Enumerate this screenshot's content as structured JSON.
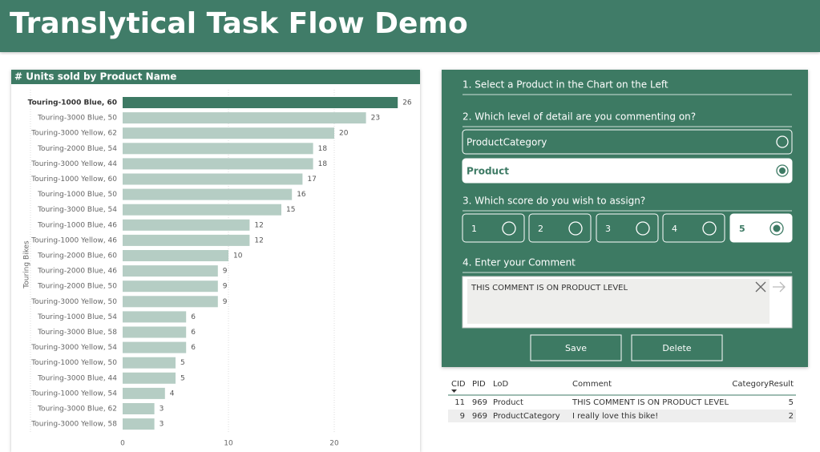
{
  "header": {
    "title": "Translytical Task Flow Demo"
  },
  "chart_data": {
    "type": "bar",
    "orientation": "horizontal",
    "title": "# Units sold by Product Name",
    "y_label": "Touring Bikes",
    "categories": [
      "Touring-1000 Blue, 60",
      "Touring-3000 Blue, 50",
      "Touring-3000 Yellow, 62",
      "Touring-2000 Blue, 54",
      "Touring-3000 Yellow, 44",
      "Touring-1000 Yellow, 60",
      "Touring-1000 Blue, 50",
      "Touring-3000 Blue, 54",
      "Touring-1000 Blue, 46",
      "Touring-1000 Yellow, 46",
      "Touring-2000 Blue, 60",
      "Touring-2000 Blue, 46",
      "Touring-2000 Blue, 50",
      "Touring-3000 Yellow, 50",
      "Touring-1000 Blue, 54",
      "Touring-3000 Blue, 58",
      "Touring-3000 Yellow, 54",
      "Touring-1000 Yellow, 50",
      "Touring-3000 Blue, 44",
      "Touring-1000 Yellow, 54",
      "Touring-3000 Blue, 62",
      "Touring-3000 Yellow, 58"
    ],
    "values": [
      26,
      23,
      20,
      18,
      18,
      17,
      16,
      15,
      12,
      12,
      10,
      9,
      9,
      9,
      6,
      6,
      6,
      5,
      5,
      4,
      3,
      3
    ],
    "color": "#b5cdc4",
    "highlight_color": "#3d7a64",
    "selected_index": 0,
    "xlim": [
      0,
      28
    ],
    "xticks": [
      0,
      10,
      20
    ],
    "grid": true
  },
  "form": {
    "steps": [
      "1. Select a Product in the Chart on the Left",
      "2. Which level of detail are you commenting on?",
      "3. Which score do you wish to assign?",
      "4. Enter your Comment"
    ],
    "detail_options": [
      "ProductCategory",
      "Product"
    ],
    "detail_selected": 1,
    "scores": [
      1,
      2,
      3,
      4,
      5
    ],
    "score_selected": 4,
    "comment": "THIS COMMENT IS ON PRODUCT LEVEL",
    "buttons": [
      "Save",
      "Delete"
    ]
  },
  "table": {
    "columns": [
      "CID",
      "PID",
      "LoD",
      "Comment",
      "CategoryResult"
    ],
    "rows": [
      [
        "11",
        "969",
        "Product",
        "THIS COMMENT IS ON PRODUCT LEVEL",
        "5"
      ],
      [
        "9",
        "969",
        "ProductCategory",
        "I really love this bike!",
        "2"
      ]
    ]
  }
}
